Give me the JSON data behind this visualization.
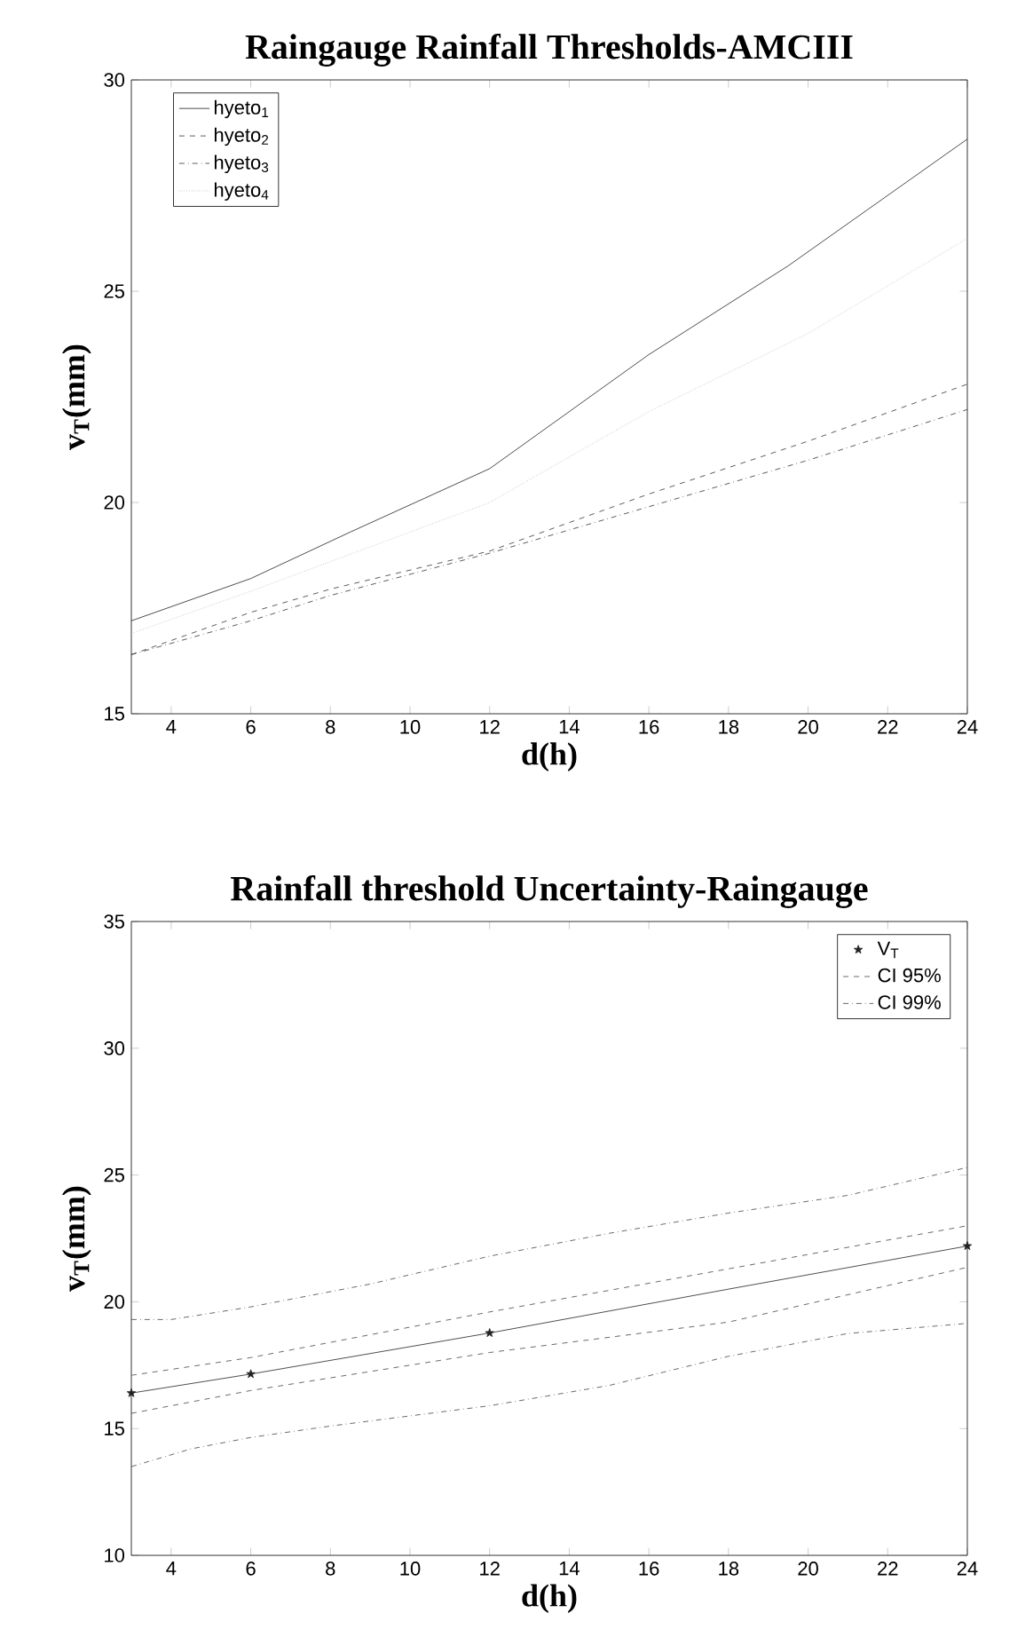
{
  "chart_data": [
    {
      "type": "line",
      "title": "Raingauge Rainfall Thresholds-AMCIII",
      "xlabel": "d(h)",
      "ylabel": "v$_{T}$(mm)",
      "xlim": [
        3,
        24
      ],
      "ylim": [
        15,
        30
      ],
      "xticks": [
        4,
        6,
        8,
        10,
        12,
        14,
        16,
        18,
        20,
        22,
        24
      ],
      "yticks": [
        15,
        20,
        25,
        30
      ],
      "legend": "top left",
      "grid": false,
      "series": [
        {
          "name": "hyeto$_{1}$",
          "color": "#222222",
          "line_style": "solid",
          "x": [
            3,
            6,
            8.5,
            12,
            16,
            19.5,
            24
          ],
          "values": [
            17.2,
            18.2,
            19.3,
            20.8,
            23.5,
            25.6,
            28.6
          ]
        },
        {
          "name": "hyeto$_{2}$",
          "color": "#333333",
          "line_style": "dashed",
          "x": [
            3,
            6,
            8,
            12,
            16,
            20,
            24
          ],
          "values": [
            16.4,
            17.4,
            17.95,
            18.85,
            20.2,
            21.45,
            22.8
          ]
        },
        {
          "name": "hyeto$_{3}$",
          "color": "#333333",
          "line_style": "dashdot",
          "x": [
            3,
            6,
            8,
            12,
            16,
            20,
            24
          ],
          "values": [
            16.4,
            17.2,
            17.8,
            18.8,
            19.9,
            21.0,
            22.2
          ]
        },
        {
          "name": "hyeto$_{4}$",
          "color": "#aaaaaa",
          "line_style": "dotted",
          "x": [
            3,
            6,
            12,
            16,
            20,
            24
          ],
          "values": [
            16.9,
            17.9,
            20.0,
            22.15,
            24.0,
            26.25
          ]
        }
      ]
    },
    {
      "type": "line",
      "title": "Rainfall threshold Uncertainty-Raingauge",
      "xlabel": "d(h)",
      "ylabel": "v$_{T}$(mm)",
      "xlim": [
        3,
        24
      ],
      "ylim": [
        10,
        35
      ],
      "xticks": [
        4,
        6,
        8,
        10,
        12,
        14,
        16,
        18,
        20,
        22,
        24
      ],
      "yticks": [
        10,
        15,
        20,
        25,
        30,
        35
      ],
      "legend": "top right",
      "grid": false,
      "series": [
        {
          "name": "V$_{T}$",
          "type": "scatter",
          "marker": "star",
          "color": "#222222",
          "x": [
            3,
            6,
            12,
            24
          ],
          "values": [
            16.4,
            17.15,
            18.77,
            22.2
          ]
        },
        {
          "color": "#222222",
          "line_style": "solid",
          "x": [
            3,
            6,
            12,
            18,
            24
          ],
          "values": [
            16.4,
            17.15,
            18.77,
            20.5,
            22.2
          ]
        },
        {
          "name": "CI 95%",
          "color": "#444444",
          "line_style": "dashed",
          "x": [
            3,
            6,
            12,
            18,
            24
          ],
          "values": [
            17.1,
            17.8,
            19.6,
            21.3,
            23.0
          ]
        },
        {
          "color": "#444444",
          "line_style": "dashed",
          "x": [
            3,
            6,
            8,
            12,
            18,
            24
          ],
          "values": [
            15.6,
            16.5,
            17.0,
            18.0,
            19.2,
            21.36
          ]
        },
        {
          "name": "CI 99%",
          "color": "#444444",
          "line_style": "dashdot",
          "x": [
            3,
            4,
            6,
            9,
            12,
            15,
            18,
            21,
            24
          ],
          "values": [
            19.3,
            19.3,
            19.8,
            20.7,
            21.8,
            22.7,
            23.5,
            24.2,
            25.3
          ]
        },
        {
          "color": "#444444",
          "line_style": "dashdot",
          "x": [
            3,
            4.5,
            6,
            8,
            12,
            15,
            18,
            21,
            24
          ],
          "values": [
            13.5,
            14.2,
            14.65,
            15.1,
            15.9,
            16.7,
            17.85,
            18.75,
            19.15
          ]
        }
      ]
    }
  ]
}
